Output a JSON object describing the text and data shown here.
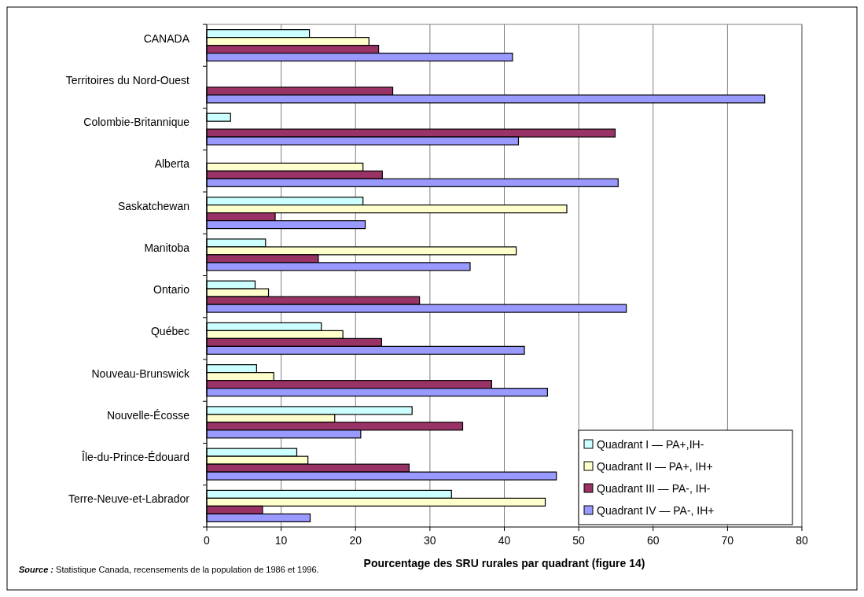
{
  "chart_data": {
    "type": "bar",
    "orientation": "horizontal",
    "xlabel": "Pourcentage des SRU rurales par quadrant (figure 14)",
    "categories": [
      "CANADA",
      "Territoires du Nord-Ouest",
      "Colombie-Britannique",
      "Alberta",
      "Saskatchewan",
      "Manitoba",
      "Ontario",
      "Québec",
      "Nouveau-Brunswick",
      "Nouvelle-Écosse",
      "Île-du-Prince-Édouard",
      "Terre-Neuve-et-Labrador"
    ],
    "series": [
      {
        "name": "Quadrant I — PA+,IH-",
        "color": "#ccffff",
        "values": [
          13.8,
          null,
          3.2,
          null,
          21.0,
          7.9,
          6.5,
          15.4,
          6.7,
          27.6,
          12.1,
          32.9
        ]
      },
      {
        "name": "Quadrant II — PA+, IH+",
        "color": "#ffffcc",
        "values": [
          21.8,
          null,
          null,
          21.0,
          48.4,
          41.6,
          8.3,
          18.3,
          9.0,
          17.2,
          13.6,
          45.5
        ]
      },
      {
        "name": "Quadrant III — PA-, IH-",
        "color": "#993366",
        "values": [
          23.1,
          25.0,
          54.9,
          23.6,
          9.2,
          15.0,
          28.6,
          23.5,
          38.3,
          34.4,
          27.2,
          7.5
        ]
      },
      {
        "name": "Quadrant IV — PA-, IH+",
        "color": "#9999ff",
        "values": [
          41.1,
          75.0,
          41.9,
          55.3,
          21.3,
          35.4,
          56.4,
          42.7,
          45.8,
          20.7,
          47.0,
          13.9
        ]
      }
    ],
    "xlim": [
      0,
      80
    ],
    "xticks": [
      0,
      10,
      20,
      30,
      40,
      50,
      60,
      70,
      80
    ],
    "grid": "x",
    "legend": "bottom right",
    "annotations": [
      "Source : Statistique Canada, recensements de la population de 1986 et 1996."
    ]
  }
}
